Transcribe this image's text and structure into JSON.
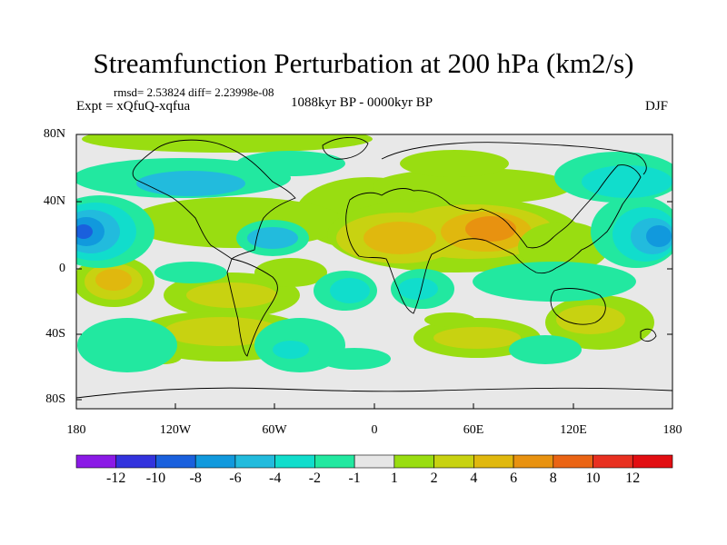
{
  "title": "Streamfunction Perturbation at 200 hPa (km2/s)",
  "stats": "rmsd= 2.53824 diff= 2.23998e-08",
  "experiment": "Expt = xQfuQ-xqfua",
  "period": "1088kyr BP - 0000kyr BP",
  "season": "DJF",
  "lat_labels": [
    "80N",
    "40N",
    "0",
    "40S",
    "80S"
  ],
  "lon_labels": [
    "180",
    "120W",
    "60W",
    "0",
    "60E",
    "120E",
    "180"
  ],
  "colorbar": {
    "labels": [
      "-12",
      "-10",
      "-8",
      "-6",
      "-4",
      "-2",
      "-1",
      "1",
      "2",
      "4",
      "6",
      "8",
      "10",
      "12"
    ],
    "colors": [
      "#8b1ae6",
      "#3333dd",
      "#1a60dd",
      "#1199dd",
      "#22bbdd",
      "#11ddcc",
      "#22e8a0",
      "#e6e6e6",
      "#99dd11",
      "#c8d211",
      "#e0b80e",
      "#e89210",
      "#ea6414",
      "#e83020",
      "#e20e12"
    ]
  }
}
